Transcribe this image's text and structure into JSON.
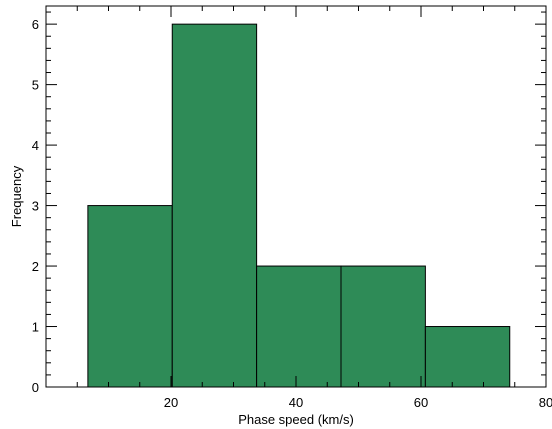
{
  "chart_data": {
    "type": "bar",
    "title": "",
    "xlabel": "Phase speed (km/s)",
    "ylabel": "Frequency",
    "xlim": [
      0,
      80
    ],
    "ylim": [
      0,
      6.3
    ],
    "xticks": [
      20,
      40,
      60,
      80
    ],
    "yticks": [
      0,
      1,
      2,
      3,
      4,
      5,
      6
    ],
    "bins": [
      {
        "x0": 6.7,
        "x1": 20.2,
        "value": 3
      },
      {
        "x0": 20.2,
        "x1": 33.7,
        "value": 6
      },
      {
        "x0": 33.7,
        "x1": 47.2,
        "value": 2
      },
      {
        "x0": 47.2,
        "x1": 60.7,
        "value": 2
      },
      {
        "x0": 60.7,
        "x1": 74.2,
        "value": 1
      }
    ],
    "bar_color": "#2e8b57",
    "grid": false,
    "legend": "none"
  }
}
